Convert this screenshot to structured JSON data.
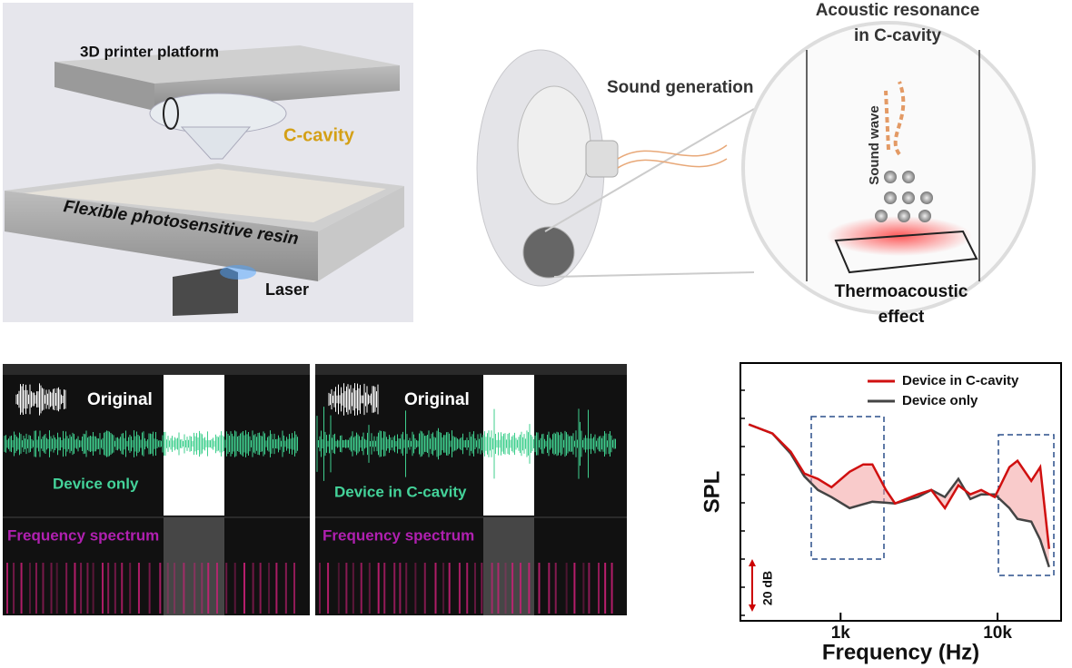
{
  "panel_a": {
    "platform_label": "3D printer platform",
    "cavity_label": "C-cavity",
    "resin_label": "Flexible photosensitive resin",
    "laser_label": "Laser"
  },
  "panel_b": {
    "sound_label": "Sound generation",
    "resonance_title": [
      "Acoustic resonance",
      "in C-cavity"
    ],
    "wave_label": "Sound wave",
    "effect_label": [
      "Thermoacoustic",
      "effect"
    ]
  },
  "panel_c": {
    "panels": [
      {
        "title": "Original",
        "trace_label": "Device only",
        "spectrum_label": "Frequency spectrum"
      },
      {
        "title": "Original",
        "trace_label": "Device in C-cavity",
        "spectrum_label": "Frequency spectrum"
      }
    ]
  },
  "chart_data": {
    "type": "line",
    "x_label": "Frequency (Hz)",
    "y_label": "SPL",
    "scale_bar_label": "20 dB",
    "log_x": true,
    "xlim": [
      230,
      25400
    ],
    "xticks": [
      {
        "value": 1000,
        "label": "1k"
      },
      {
        "value": 10000,
        "label": "10k"
      }
    ],
    "ylim": [
      0,
      105
    ],
    "x": [
      260,
      368,
      481,
      587,
      717,
      875,
      1142,
      1394,
      1594,
      1945,
      2223,
      3100,
      3785,
      4620,
      5630,
      6710,
      7870,
      9600,
      11900,
      13400,
      16400,
      18700,
      21300
    ],
    "series": [
      {
        "name": "Device in C-cavity",
        "color": "#d01010",
        "values": [
          80,
          76.3,
          68.9,
          60,
          57.8,
          54.4,
          60.7,
          63.7,
          63.7,
          53.3,
          47.8,
          51.5,
          53.3,
          45.9,
          55.2,
          51.5,
          53.3,
          50.4,
          62.6,
          65.2,
          57,
          62.6,
          29.3
        ]
      },
      {
        "name": "Device only",
        "color": "#444444",
        "values": [
          80,
          76.3,
          68.1,
          58.9,
          53.3,
          50.4,
          45.9,
          47.5,
          48.5,
          48.1,
          47.8,
          50.4,
          53.3,
          50.4,
          57.8,
          49.6,
          51.5,
          51.5,
          45.9,
          41.5,
          40.4,
          33,
          21.9
        ]
      }
    ],
    "legend": "upper right"
  }
}
